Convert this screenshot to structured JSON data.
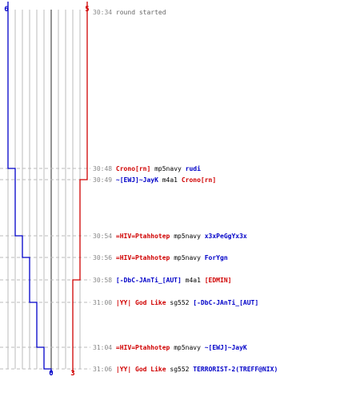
{
  "teams": [
    {
      "start_count": "6",
      "end_count": "0",
      "color": "#0000c8"
    },
    {
      "start_count": "5",
      "end_count": "3",
      "color": "#d00000"
    }
  ],
  "colors": {
    "time": "#888888",
    "info": "#666666",
    "weapon": "#000000",
    "grid": "#bbbbbb",
    "dash": "#bbbbbb",
    "center": "#666666"
  },
  "events": [
    {
      "time": "30:34",
      "info": "round started"
    },
    {
      "time": "30:48",
      "killer": "Crono[rn]",
      "killer_team": 1,
      "weapon": "mp5navy",
      "victim": "rudi",
      "victim_team": 0
    },
    {
      "time": "30:49",
      "killer": "~[EWJ]~JayK",
      "killer_team": 0,
      "weapon": "m4a1",
      "victim": "Crono[rn]",
      "victim_team": 1
    },
    {
      "time": "30:54",
      "killer": "=HIV=Ptahhotep",
      "killer_team": 1,
      "weapon": "mp5navy",
      "victim": "x3xPeGgYx3x",
      "victim_team": 0
    },
    {
      "time": "30:56",
      "killer": "=HIV=Ptahhotep",
      "killer_team": 1,
      "weapon": "mp5navy",
      "victim": "ForYgn",
      "victim_team": 0
    },
    {
      "time": "30:58",
      "killer": "[-DbC-JAnTi_[AUT]",
      "killer_team": 0,
      "weapon": "m4a1",
      "victim": "[EDMIN]",
      "victim_team": 1
    },
    {
      "time": "31:00",
      "killer": "|YY| God Like",
      "killer_team": 1,
      "weapon": "sg552",
      "victim": "[-DbC-JAnTi_[AUT]",
      "victim_team": 0
    },
    {
      "time": "31:04",
      "killer": "=HIV=Ptahhotep",
      "killer_team": 1,
      "weapon": "mp5navy",
      "victim": "~[EWJ]~JayK",
      "victim_team": 0
    },
    {
      "time": "31:06",
      "killer": "|YY| God Like",
      "killer_team": 1,
      "weapon": "sg552",
      "victim": "TERRORIST-2(TREFF@NIX)",
      "victim_team": 0
    }
  ]
}
